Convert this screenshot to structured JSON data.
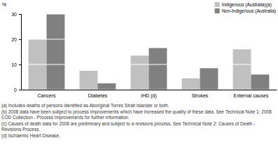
{
  "chart_data": {
    "type": "bar",
    "y_label": "%",
    "categories": [
      "Cancers",
      "Diabetes",
      "IHD (d)",
      "Strokes",
      "External causes"
    ],
    "series": [
      {
        "name": "Indigenous (Australia)(a)",
        "color": "#c0c0c0",
        "values": [
          20,
          7.5,
          13.5,
          4.5,
          16
        ]
      },
      {
        "name": "Non-Indigenous (Australia)",
        "color": "#808080",
        "values": [
          30,
          2.5,
          16.5,
          8.5,
          6
        ]
      }
    ],
    "ylim": [
      0,
      30
    ],
    "yticks": [
      0,
      10,
      20,
      30
    ],
    "grid": true,
    "legend": "top-right",
    "notes": [
      "(a) Includes deaths of persons identified as Aboriginal Torres Strait Islander or both.",
      "(b) 2008 data have been subject to process improvements which have increased the quality of these data. See Technical Note 1: 2008 COD Collection - Process Improvements for further information.",
      "(c) Causes of death data for 2008 are preliminary and subject to a revisions process. See Technical Note 2: Causes of Death - Revisions Process.",
      "(d) Ischaemic Heart Disease."
    ]
  }
}
